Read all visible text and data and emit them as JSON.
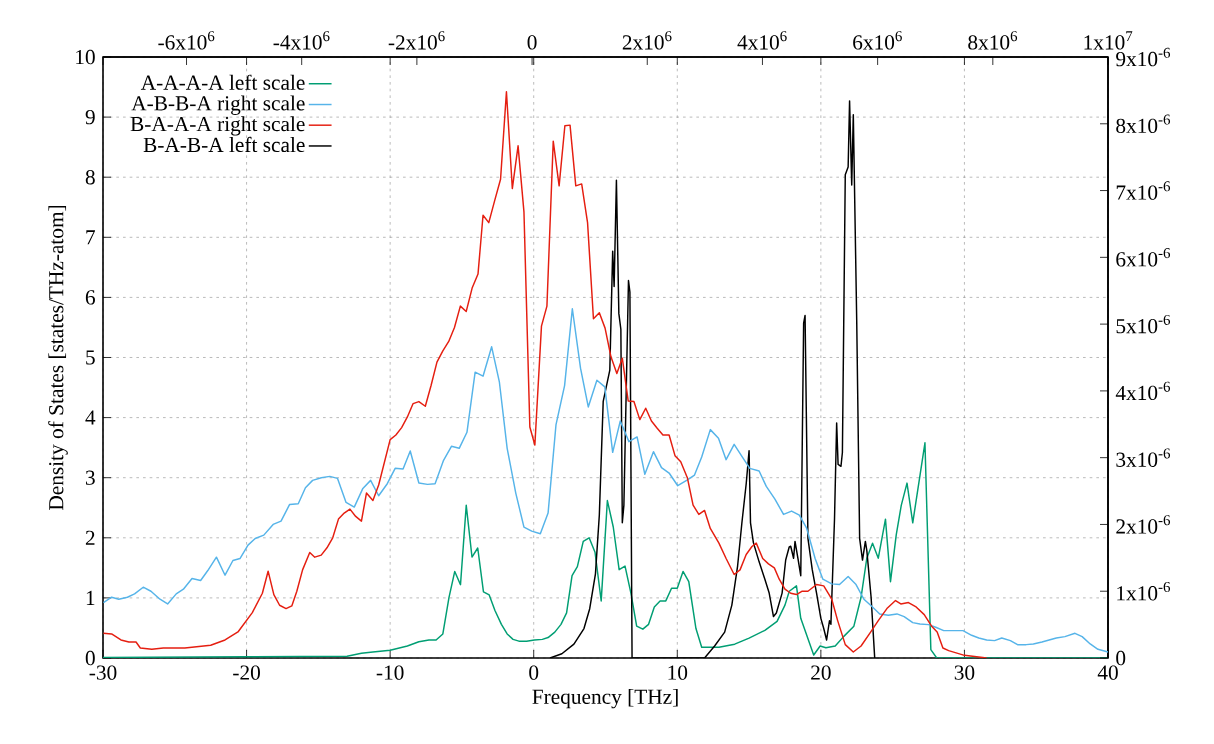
{
  "chart_data": {
    "type": "line",
    "xlabel": "Frequency [THz]",
    "ylabel": "Density of States [states/THz-atom]",
    "xlim": [
      -30,
      40
    ],
    "xticks": [
      -30,
      -20,
      -10,
      0,
      10,
      20,
      30,
      40
    ],
    "ylim": [
      0,
      10
    ],
    "yticks": [
      0,
      1,
      2,
      3,
      4,
      5,
      6,
      7,
      8,
      9,
      10
    ],
    "y2lim": [
      0,
      9e-06
    ],
    "y2ticks": [
      0,
      {
        "value": 1e-06,
        "label": "1x10$^{-6}$"
      },
      {
        "value": 2e-06,
        "label": "2x10$^{-6}$"
      },
      {
        "value": 3e-06,
        "label": "3x10$^{-6}$"
      },
      {
        "value": 4e-06,
        "label": "4x10$^{-6}$"
      },
      {
        "value": 5e-06,
        "label": "5x10$^{-6}$"
      },
      {
        "value": 6e-06,
        "label": "6x10$^{-6}$"
      },
      {
        "value": 7e-06,
        "label": "7x10$^{-6}$"
      },
      {
        "value": 8e-06,
        "label": "8x10$^{-6}$"
      },
      {
        "value": 9e-06,
        "label": "9x10$^{-6}$"
      }
    ],
    "x2lim": [
      -7450000.0,
      10000000.0
    ],
    "x2ticks": [
      {
        "value": -6000000.0,
        "label": "-6x10$^{6}$"
      },
      {
        "value": -4000000.0,
        "label": "-4x10$^{6}$"
      },
      {
        "value": -2000000.0,
        "label": "-2x10$^{6}$"
      },
      0,
      {
        "value": 2000000.0,
        "label": "2x10$^{6}$"
      },
      {
        "value": 4000000.0,
        "label": "4x10$^{6}$"
      },
      {
        "value": 6000000.0,
        "label": "6x10$^{6}$"
      },
      {
        "value": 8000000.0,
        "label": "8x10$^{6}$"
      },
      {
        "value": 10000000.0,
        "label": "1x10$^{7}$"
      }
    ],
    "grid": true,
    "legend": "top left",
    "series": [
      {
        "name": "A-A-A-A left scale",
        "color": "#009e73",
        "x": [
          -30,
          -20,
          -13,
          -12,
          -11.2,
          -10,
          -8.8,
          -8,
          -7.3,
          -6.8,
          -6.33,
          -5.9,
          -5.5,
          -5.1,
          -4.7,
          -4.3,
          -3.9,
          -3.5,
          -3.1,
          -2.7,
          -2.25,
          -1.85,
          -1.44,
          -1.03,
          -0.5,
          0.05,
          0.6,
          1.0,
          1.47,
          1.9,
          2.29,
          2.67,
          3.04,
          3.45,
          3.86,
          4.27,
          4.7,
          5.13,
          5.54,
          5.95,
          6.36,
          6.77,
          7.17,
          7.6,
          8.0,
          8.4,
          8.8,
          9.2,
          9.6,
          10.0,
          10.4,
          10.8,
          11.3,
          11.7,
          12.9,
          14.0,
          15.0,
          16.1,
          16.95,
          17.5,
          17.8,
          18.3,
          18.6,
          19.5,
          19.95,
          20.35,
          21.0,
          21.6,
          22.3,
          22.8,
          23.2,
          23.6,
          24.0,
          24.5,
          24.85,
          25.25,
          25.6,
          26.0,
          26.4,
          27.25,
          27.66,
          28.07,
          40
        ],
        "values": [
          0.01,
          0.02,
          0.03,
          0.08,
          0.1,
          0.13,
          0.2,
          0.27,
          0.3,
          0.3,
          0.4,
          1.01,
          1.44,
          1.22,
          2.54,
          1.68,
          1.83,
          1.1,
          1.05,
          0.79,
          0.56,
          0.4,
          0.31,
          0.28,
          0.28,
          0.3,
          0.31,
          0.34,
          0.43,
          0.56,
          0.75,
          1.37,
          1.52,
          1.94,
          2.0,
          1.76,
          0.95,
          2.62,
          2.18,
          1.47,
          1.53,
          1.08,
          0.53,
          0.48,
          0.56,
          0.85,
          0.95,
          0.95,
          1.16,
          1.16,
          1.44,
          1.27,
          0.49,
          0.18,
          0.18,
          0.23,
          0.33,
          0.46,
          0.61,
          0.88,
          1.11,
          1.2,
          0.66,
          0.05,
          0.2,
          0.17,
          0.2,
          0.36,
          0.53,
          1.01,
          1.66,
          1.91,
          1.66,
          2.31,
          1.27,
          2.05,
          2.54,
          2.91,
          2.25,
          3.58,
          0.14,
          0,
          0
        ]
      },
      {
        "name": "A-B-B-A right scale",
        "color": "#56b4e9",
        "axis": "y2",
        "x": [
          -29.97,
          -29.4,
          -28.9,
          -28.3,
          -27.8,
          -27.2,
          -26.66,
          -26.03,
          -25.5,
          -24.9,
          -24.4,
          -23.8,
          -23.2,
          -22.7,
          -22.1,
          -21.5,
          -20.95,
          -20.46,
          -19.9,
          -19.4,
          -18.8,
          -18.15,
          -17.6,
          -17.0,
          -16.4,
          -15.9,
          -15.4,
          -14.8,
          -14.2,
          -13.67,
          -13.07,
          -12.5,
          -11.9,
          -11.36,
          -10.8,
          -10.2,
          -9.65,
          -9.1,
          -8.6,
          -8.0,
          -7.4,
          -6.87,
          -6.28,
          -5.73,
          -5.19,
          -4.65,
          -4.08,
          -3.53,
          -2.93,
          -2.39,
          -1.85,
          -1.25,
          -0.68,
          -0.14,
          0.46,
          1.0,
          1.55,
          2.15,
          2.69,
          3.26,
          3.8,
          4.4,
          4.95,
          5.5,
          6.03,
          6.63,
          7.2,
          7.74,
          8.34,
          8.9,
          9.43,
          10.03,
          10.65,
          11.2,
          11.7,
          12.3,
          12.87,
          13.4,
          13.96,
          14.5,
          15.05,
          15.7,
          16.2,
          16.8,
          17.4,
          17.96,
          18.5,
          19.0,
          19.6,
          20.14,
          20.76,
          21.3,
          21.9,
          22.45,
          23.0,
          23.56,
          24.1,
          24.7,
          25.3,
          25.8,
          26.4,
          26.9,
          27.5,
          28.0,
          28.56,
          29.1,
          29.9,
          30.5,
          31.0,
          31.55,
          32.1,
          32.6,
          33.2,
          33.7,
          34.3,
          34.8,
          35.4,
          35.9,
          36.4,
          37.0,
          37.7,
          38.2,
          38.76,
          39.3,
          40.0
        ],
        "values": [
          8.3e-07,
          9.1e-07,
          8.8e-07,
          9.1e-07,
          9.6e-07,
          1.06e-06,
          1e-06,
          8.8e-07,
          8.1e-07,
          9.6e-07,
          1.03e-06,
          1.19e-06,
          1.16e-06,
          1.31e-06,
          1.51e-06,
          1.24e-06,
          1.46e-06,
          1.49e-06,
          1.69e-06,
          1.79e-06,
          1.84e-06,
          2e-06,
          2.05e-06,
          2.3e-06,
          2.31e-06,
          2.55e-06,
          2.66e-06,
          2.7e-06,
          2.72e-06,
          2.69e-06,
          2.33e-06,
          2.26e-06,
          2.54e-06,
          2.66e-06,
          2.43e-06,
          2.61e-06,
          2.84e-06,
          2.83e-06,
          3.1e-06,
          2.62e-06,
          2.6e-06,
          2.61e-06,
          2.96e-06,
          3.17e-06,
          3.14e-06,
          3.38e-06,
          4.28e-06,
          4.22e-06,
          4.66e-06,
          4.13e-06,
          3.14e-06,
          2.47e-06,
          1.96e-06,
          1.9e-06,
          1.86e-06,
          2.17e-06,
          3.49e-06,
          4.08e-06,
          5.23e-06,
          4.34e-06,
          3.76e-06,
          4.16e-06,
          4.06e-06,
          3.08e-06,
          3.55e-06,
          3.24e-06,
          3.31e-06,
          2.75e-06,
          3.09e-06,
          2.85e-06,
          2.77e-06,
          2.58e-06,
          2.66e-06,
          2.74e-06,
          3.01e-06,
          3.42e-06,
          3.29e-06,
          2.97e-06,
          3.2e-06,
          3.02e-06,
          2.84e-06,
          2.8e-06,
          2.57e-06,
          2.38e-06,
          2.15e-06,
          2.2e-06,
          2.14e-06,
          1.95e-06,
          1.49e-06,
          1.18e-06,
          1.11e-06,
          1.1e-06,
          1.22e-06,
          1.1e-06,
          8.8e-07,
          7.7e-07,
          6.6e-07,
          6.4e-07,
          6.6e-07,
          6.2e-07,
          5.3e-07,
          5.1e-07,
          5e-07,
          4.6e-07,
          4.1e-07,
          4.1e-07,
          4.1e-07,
          3.4e-07,
          3e-07,
          2.7e-07,
          2.6e-07,
          3e-07,
          2.6e-07,
          2e-07,
          2e-07,
          2.1e-07,
          2.4e-07,
          2.7e-07,
          3e-07,
          3.2e-07,
          3.7e-07,
          3.2e-07,
          2.1e-07,
          1.3e-07,
          9e-08
        ]
      },
      {
        "name": "B-A-A-A right scale",
        "color": "#e51e10",
        "axis": "y2",
        "x": [
          -29.97,
          -29.4,
          -28.75,
          -28.2,
          -27.7,
          -27.4,
          -26.6,
          -25.8,
          -24.3,
          -22.5,
          -21.5,
          -20.6,
          -19.6,
          -18.9,
          -18.5,
          -18.1,
          -17.7,
          -17.25,
          -16.85,
          -16.5,
          -16.1,
          -15.6,
          -15.25,
          -14.8,
          -14.4,
          -14.0,
          -13.6,
          -13.2,
          -12.8,
          -12.4,
          -12.0,
          -11.65,
          -11.2,
          -10.8,
          -10.0,
          -9.6,
          -9.2,
          -8.8,
          -8.4,
          -8.0,
          -7.55,
          -7.15,
          -6.74,
          -6.33,
          -5.92,
          -5.52,
          -5.11,
          -4.7,
          -4.29,
          -3.88,
          -3.53,
          -3.13,
          -2.72,
          -2.31,
          -1.9,
          -1.49,
          -1.09,
          -0.68,
          -0.27,
          0.08,
          0.54,
          0.92,
          1.36,
          1.77,
          2.17,
          2.53,
          2.93,
          3.34,
          3.75,
          4.16,
          4.57,
          4.97,
          5.38,
          5.79,
          6.17,
          6.58,
          6.98,
          7.39,
          7.8,
          8.2,
          8.6,
          9.0,
          9.43,
          9.84,
          10.24,
          10.7,
          11.1,
          11.5,
          11.9,
          12.3,
          12.9,
          13.4,
          13.96,
          14.37,
          14.8,
          15.2,
          15.5,
          15.95,
          16.35,
          16.76,
          17.1,
          17.5,
          17.9,
          18.3,
          18.7,
          19.1,
          19.7,
          20.2,
          20.76,
          21.17,
          21.7,
          22.26,
          22.8,
          23.5,
          24.0,
          24.6,
          25.2,
          25.57,
          26.1,
          26.6,
          27.2,
          27.7,
          28.1,
          28.5,
          28.9,
          30.0,
          31.55
        ],
        "values": [
          3.7e-07,
          3.6e-07,
          2.7e-07,
          2.4e-07,
          2.4e-07,
          1.5e-07,
          1.3e-07,
          1.5e-07,
          1.5e-07,
          1.9e-07,
          2.7e-07,
          3.9e-07,
          6.8e-07,
          9.7e-07,
          1.3e-06,
          9.5e-07,
          7.9e-07,
          7.4e-07,
          7.8e-07,
          1e-06,
          1.32e-06,
          1.58e-06,
          1.51e-06,
          1.54e-06,
          1.65e-06,
          1.8e-06,
          2.08e-06,
          2.17e-06,
          2.23e-06,
          2.12e-06,
          2.05e-06,
          2.47e-06,
          2.36e-06,
          2.59e-06,
          3.27e-06,
          3.34e-06,
          3.45e-06,
          3.61e-06,
          3.81e-06,
          3.84e-06,
          3.77e-06,
          4.08e-06,
          4.43e-06,
          4.6e-06,
          4.74e-06,
          4.95e-06,
          5.27e-06,
          5.19e-06,
          5.54e-06,
          5.75e-06,
          6.63e-06,
          6.52e-06,
          6.85e-06,
          7.17e-06,
          8.48e-06,
          7.03e-06,
          7.67e-06,
          6.68e-06,
          3.46e-06,
          3.19e-06,
          4.97e-06,
          5.27e-06,
          7.74e-06,
          7.07e-06,
          7.97e-06,
          7.98e-06,
          7.07e-06,
          7.1e-06,
          6.52e-06,
          5.08e-06,
          5.17e-06,
          4.94e-06,
          4.51e-06,
          4.26e-06,
          4.49e-06,
          3.85e-06,
          3.84e-06,
          3.57e-06,
          3.74e-06,
          3.55e-06,
          3.44e-06,
          3.34e-06,
          3.34e-06,
          3.03e-06,
          2.94e-06,
          2.7e-06,
          2.29e-06,
          2.15e-06,
          2.21e-06,
          1.94e-06,
          1.72e-06,
          1.49e-06,
          1.25e-06,
          1.32e-06,
          1.55e-06,
          1.67e-06,
          1.72e-06,
          1.49e-06,
          1.41e-06,
          1.35e-06,
          1.18e-06,
          1.03e-06,
          9.7e-07,
          9.5e-07,
          1e-06,
          1e-06,
          1.1e-06,
          1.08e-06,
          8.8e-07,
          5.6e-07,
          2e-07,
          9e-08,
          1.8e-07,
          4e-07,
          5.6e-07,
          7.4e-07,
          8.6e-07,
          8.1e-07,
          8.3e-07,
          7.7e-07,
          6.5e-07,
          4.8e-07,
          3.9e-07,
          1.5e-07,
          1.1e-07,
          4e-08,
          0
        ]
      },
      {
        "name": "B-A-B-A left scale",
        "color": "#000000",
        "x": [
          1.14,
          1.96,
          2.8,
          3.5,
          3.9,
          4.3,
          4.57,
          4.84,
          5.3,
          5.5,
          5.6,
          5.76,
          5.93,
          6.07,
          6.17,
          6.28,
          6.6,
          6.7,
          6.85,
          11.9,
          12.6,
          13.3,
          13.8,
          14.2,
          14.5,
          14.8,
          15.0,
          15.1,
          15.3,
          15.7,
          16.1,
          16.4,
          16.7,
          16.9,
          17.3,
          17.55,
          17.8,
          17.9,
          18.1,
          18.2,
          18.4,
          18.6,
          18.8,
          18.9,
          19.1,
          19.4,
          19.7,
          20.0,
          20.2,
          20.4,
          20.6,
          20.7,
          20.95,
          21.1,
          21.2,
          21.4,
          21.5,
          21.7,
          21.9,
          22.0,
          22.15,
          22.26,
          22.5,
          22.7,
          22.9,
          23.1,
          23.2,
          23.5,
          23.75
        ],
        "values": [
          0,
          0.07,
          0.23,
          0.49,
          0.82,
          1.4,
          2.38,
          4.27,
          4.79,
          6.77,
          6.18,
          7.95,
          5.73,
          5.47,
          2.25,
          2.54,
          6.28,
          6.09,
          0,
          0,
          0.2,
          0.43,
          0.88,
          1.53,
          2.25,
          2.9,
          3.45,
          2.25,
          1.92,
          1.6,
          1.31,
          1.08,
          0.69,
          0.75,
          1.08,
          1.63,
          1.85,
          1.86,
          1.66,
          1.94,
          1.66,
          1.37,
          5.57,
          5.7,
          1.99,
          1.47,
          1.08,
          0.66,
          0.49,
          0.3,
          0.62,
          0.56,
          2.31,
          3.91,
          3.22,
          3.19,
          3.42,
          8.04,
          8.17,
          9.27,
          7.87,
          9.04,
          5.57,
          1.99,
          1.63,
          1.94,
          1.79,
          1.01,
          0
        ]
      }
    ]
  }
}
